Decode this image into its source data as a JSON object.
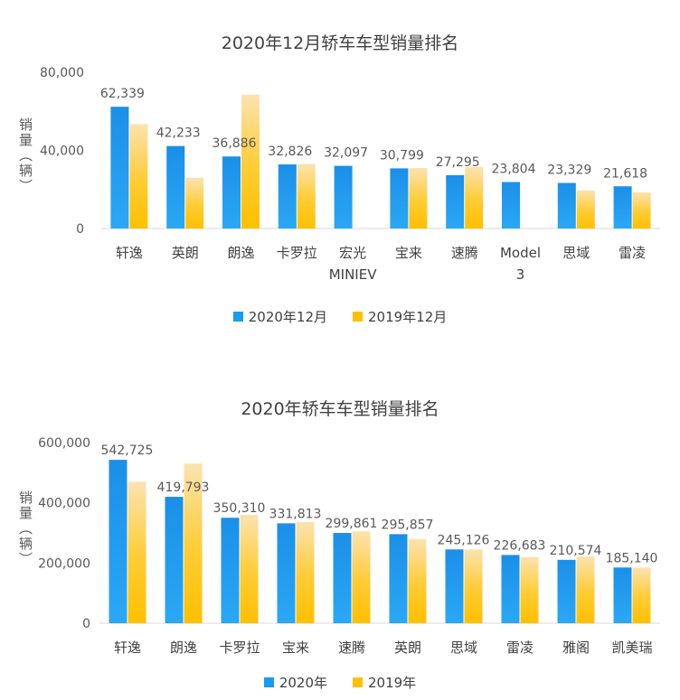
{
  "chart_data": [
    {
      "type": "bar",
      "title": "2020年12月轿车车型销量排名",
      "ylabel": "销量（辆）",
      "ylim": [
        0,
        80000
      ],
      "yticks": [
        "0",
        "40,000",
        "80,000"
      ],
      "categories": [
        "轩逸",
        "英朗",
        "朗逸",
        "卡罗拉",
        "宏光 MINIEV",
        "宝来",
        "速腾",
        "Model 3",
        "思域",
        "雷凌"
      ],
      "series": [
        {
          "name": "2020年12月",
          "values": [
            62339,
            42233,
            36886,
            32826,
            32097,
            30799,
            27295,
            23804,
            23329,
            21618
          ],
          "labels": [
            "62,339",
            "42,233",
            "36,886",
            "32,826",
            "32,097",
            "30,799",
            "27,295",
            "23,804",
            "23,329",
            "21,618"
          ]
        },
        {
          "name": "2019年12月",
          "values": [
            53500,
            26000,
            68500,
            33000,
            0,
            31000,
            31500,
            0,
            19500,
            18500
          ]
        }
      ],
      "grid": false,
      "legend": "bottom"
    },
    {
      "type": "bar",
      "title": "2020年轿车车型销量排名",
      "ylabel": "销量（辆）",
      "ylim": [
        0,
        600000
      ],
      "yticks": [
        "0",
        "200,000",
        "400,000",
        "600,000"
      ],
      "categories": [
        "轩逸",
        "朗逸",
        "卡罗拉",
        "宝来",
        "速腾",
        "英朗",
        "思域",
        "雷凌",
        "雅阁",
        "凯美瑞"
      ],
      "series": [
        {
          "name": "2020年",
          "values": [
            542725,
            419793,
            350310,
            331813,
            299861,
            295857,
            245126,
            226683,
            210574,
            185140
          ],
          "labels": [
            "542,725",
            "419,793",
            "350,310",
            "331,813",
            "299,861",
            "295,857",
            "245,126",
            "226,683",
            "210,574",
            "185,140"
          ]
        },
        {
          "name": "2019年",
          "values": [
            470000,
            530000,
            360000,
            336000,
            305000,
            280000,
            245000,
            220000,
            222000,
            185000
          ]
        }
      ],
      "grid": false,
      "legend": "bottom"
    }
  ],
  "colors": {
    "series_a": "#1a9af0",
    "series_b": "#ffc000",
    "axis": "#d9d9d9"
  }
}
